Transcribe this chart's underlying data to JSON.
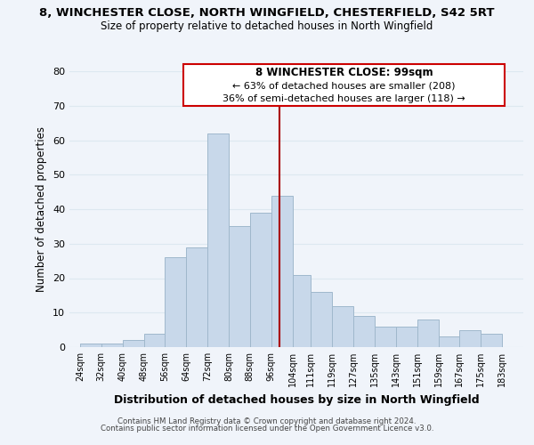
{
  "title1": "8, WINCHESTER CLOSE, NORTH WINGFIELD, CHESTERFIELD, S42 5RT",
  "title2": "Size of property relative to detached houses in North Wingfield",
  "xlabel": "Distribution of detached houses by size in North Wingfield",
  "ylabel": "Number of detached properties",
  "footer1": "Contains HM Land Registry data © Crown copyright and database right 2024.",
  "footer2": "Contains public sector information licensed under the Open Government Licence v3.0.",
  "annotation_line1": "8 WINCHESTER CLOSE: 99sqm",
  "annotation_line2": "← 63% of detached houses are smaller (208)",
  "annotation_line3": "36% of semi-detached houses are larger (118) →",
  "bar_left_edges": [
    24,
    32,
    40,
    48,
    56,
    64,
    72,
    80,
    88,
    96,
    104,
    111,
    119,
    127,
    135,
    143,
    151,
    159,
    167,
    175
  ],
  "bar_widths": [
    8,
    8,
    8,
    8,
    8,
    8,
    8,
    8,
    8,
    8,
    7,
    8,
    8,
    8,
    8,
    8,
    8,
    8,
    8,
    8
  ],
  "bar_heights": [
    1,
    1,
    2,
    4,
    26,
    29,
    62,
    35,
    39,
    44,
    21,
    16,
    12,
    9,
    6,
    6,
    8,
    3,
    5,
    4
  ],
  "bar_color": "#c8d8ea",
  "bar_edgecolor": "#a0b8cc",
  "vline_x": 99,
  "vline_color": "#aa0000",
  "ylim": [
    0,
    80
  ],
  "yticks": [
    0,
    10,
    20,
    30,
    40,
    50,
    60,
    70,
    80
  ],
  "xtick_labels": [
    "24sqm",
    "32sqm",
    "40sqm",
    "48sqm",
    "56sqm",
    "64sqm",
    "72sqm",
    "80sqm",
    "88sqm",
    "96sqm",
    "104sqm",
    "111sqm",
    "119sqm",
    "127sqm",
    "135sqm",
    "143sqm",
    "151sqm",
    "159sqm",
    "167sqm",
    "175sqm",
    "183sqm"
  ],
  "xtick_positions": [
    24,
    32,
    40,
    48,
    56,
    64,
    72,
    80,
    88,
    96,
    104,
    111,
    119,
    127,
    135,
    143,
    151,
    159,
    167,
    175,
    183
  ],
  "grid_color": "#dde8f0",
  "bg_color": "#f0f4fa",
  "annotation_box_edgecolor": "#cc0000",
  "annotation_box_fill": "#ffffff",
  "xlim_left": 20,
  "xlim_right": 191
}
